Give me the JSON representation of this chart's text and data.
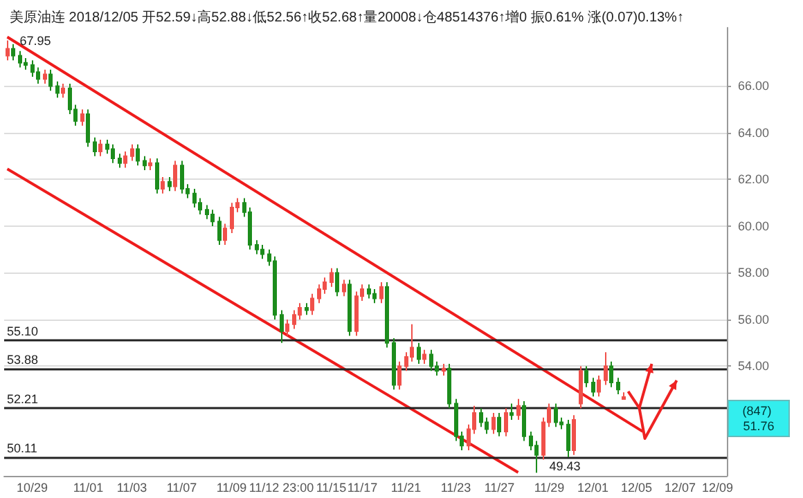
{
  "chart_data": {
    "type": "candlestick",
    "title": "美原油连 2018/12/05 开52.59↓高52.88↓低52.56↑收52.68↑量20008↓仓48514376↑增0 振0.61% 涨(0.07)0.13%↑",
    "categories": [
      null,
      null,
      null,
      null,
      "10/29",
      null,
      null,
      null,
      null,
      null,
      null,
      null,
      null,
      "11/01",
      null,
      null,
      null,
      null,
      null,
      null,
      "11/03",
      null,
      null,
      null,
      null,
      null,
      null,
      null,
      "11/07",
      null,
      null,
      null,
      null,
      null,
      null,
      null,
      "11/09",
      null,
      null,
      null,
      null,
      null,
      null,
      null,
      "11/12 23:00",
      null,
      null,
      null,
      null,
      null,
      null,
      null,
      "11/15",
      null,
      null,
      null,
      null,
      "11/17",
      null,
      null,
      null,
      null,
      null,
      null,
      "11/21",
      null,
      null,
      null,
      null,
      null,
      null,
      null,
      "11/23",
      null,
      null,
      null,
      null,
      null,
      null,
      "11/27",
      null,
      null,
      null,
      null,
      null,
      null,
      null,
      "11/29",
      null,
      null,
      null,
      null,
      null,
      null,
      "12/01",
      null,
      null,
      null,
      null,
      null,
      null,
      "12/05",
      null,
      null,
      null,
      null,
      null,
      null,
      "12/07",
      null,
      null,
      null,
      null,
      null,
      "12/09",
      null
    ],
    "ohlc": [
      [
        67.3,
        67.95,
        67.1,
        67.6
      ],
      [
        67.6,
        67.8,
        67.1,
        67.3
      ],
      [
        67.3,
        67.5,
        66.8,
        67.0
      ],
      [
        67.0,
        67.2,
        66.7,
        66.9
      ],
      [
        66.9,
        67.1,
        66.4,
        66.6
      ],
      [
        66.6,
        66.8,
        66.1,
        66.3
      ],
      [
        66.3,
        66.7,
        66.1,
        66.5
      ],
      [
        66.5,
        66.7,
        65.8,
        66.0
      ],
      [
        66.0,
        66.2,
        65.5,
        65.7
      ],
      [
        65.7,
        66.1,
        65.5,
        65.9
      ],
      [
        65.9,
        66.1,
        64.8,
        65.0
      ],
      [
        65.0,
        65.2,
        64.3,
        64.5
      ],
      [
        64.5,
        65.0,
        64.3,
        64.8
      ],
      [
        64.8,
        65.0,
        63.4,
        63.6
      ],
      [
        63.6,
        63.8,
        63.0,
        63.2
      ],
      [
        63.2,
        63.7,
        63.0,
        63.5
      ],
      [
        63.5,
        63.7,
        63.1,
        63.3
      ],
      [
        63.3,
        63.5,
        62.7,
        62.9
      ],
      [
        62.9,
        63.1,
        62.5,
        62.7
      ],
      [
        62.7,
        63.2,
        62.5,
        63.0
      ],
      [
        63.0,
        63.5,
        62.8,
        63.3
      ],
      [
        63.3,
        63.5,
        62.6,
        62.8
      ],
      [
        62.8,
        63.0,
        62.4,
        62.6
      ],
      [
        62.6,
        62.9,
        62.4,
        62.7
      ],
      [
        62.7,
        62.9,
        61.4,
        61.6
      ],
      [
        61.6,
        62.1,
        61.4,
        61.9
      ],
      [
        61.9,
        62.1,
        61.5,
        61.7
      ],
      [
        61.7,
        62.8,
        61.5,
        62.6
      ],
      [
        62.6,
        62.8,
        61.4,
        61.6
      ],
      [
        61.6,
        61.8,
        61.2,
        61.4
      ],
      [
        61.4,
        61.6,
        60.8,
        61.0
      ],
      [
        61.0,
        61.2,
        60.5,
        60.7
      ],
      [
        60.7,
        60.9,
        60.3,
        60.5
      ],
      [
        60.5,
        60.7,
        60.0,
        60.2
      ],
      [
        60.2,
        60.4,
        59.2,
        59.4
      ],
      [
        59.4,
        60.1,
        59.2,
        59.9
      ],
      [
        59.9,
        61.0,
        59.7,
        60.8
      ],
      [
        60.8,
        61.2,
        60.6,
        61.0
      ],
      [
        61.0,
        61.2,
        60.4,
        60.6
      ],
      [
        60.6,
        60.8,
        59.0,
        59.2
      ],
      [
        59.2,
        59.4,
        58.8,
        59.0
      ],
      [
        59.0,
        59.2,
        58.6,
        58.8
      ],
      [
        58.8,
        59.0,
        58.3,
        58.5
      ],
      [
        58.5,
        58.7,
        56.0,
        56.2
      ],
      [
        56.2,
        56.4,
        55.0,
        55.5
      ],
      [
        55.5,
        56.0,
        55.3,
        55.8
      ],
      [
        55.8,
        56.4,
        55.6,
        56.2
      ],
      [
        56.2,
        56.7,
        56.0,
        56.5
      ],
      [
        56.5,
        56.7,
        56.2,
        56.4
      ],
      [
        56.4,
        57.1,
        56.2,
        56.9
      ],
      [
        56.9,
        57.5,
        56.7,
        57.3
      ],
      [
        57.3,
        57.8,
        57.1,
        57.6
      ],
      [
        57.6,
        58.2,
        57.4,
        58.0
      ],
      [
        58.0,
        58.2,
        57.0,
        57.2
      ],
      [
        57.2,
        57.7,
        57.0,
        57.5
      ],
      [
        57.5,
        57.7,
        55.3,
        55.5
      ],
      [
        55.5,
        57.2,
        55.3,
        57.0
      ],
      [
        57.0,
        57.5,
        56.8,
        57.3
      ],
      [
        57.3,
        57.5,
        56.9,
        57.1
      ],
      [
        57.1,
        57.3,
        56.7,
        56.9
      ],
      [
        56.9,
        57.6,
        56.7,
        57.4
      ],
      [
        57.4,
        57.6,
        54.8,
        55.0
      ],
      [
        55.0,
        55.2,
        53.0,
        53.2
      ],
      [
        53.2,
        54.2,
        53.0,
        54.0
      ],
      [
        54.0,
        54.6,
        53.8,
        54.4
      ],
      [
        54.4,
        55.8,
        54.2,
        54.8
      ],
      [
        54.8,
        55.0,
        54.1,
        54.3
      ],
      [
        54.3,
        54.7,
        54.1,
        54.5
      ],
      [
        54.5,
        54.7,
        53.8,
        54.0
      ],
      [
        54.0,
        54.2,
        53.6,
        53.8
      ],
      [
        53.8,
        54.1,
        53.6,
        53.9
      ],
      [
        53.9,
        54.1,
        52.2,
        52.4
      ],
      [
        52.4,
        52.6,
        50.8,
        51.0
      ],
      [
        51.0,
        51.2,
        50.4,
        50.6
      ],
      [
        50.6,
        51.5,
        50.4,
        51.3
      ],
      [
        51.3,
        52.3,
        51.1,
        52.0
      ],
      [
        52.0,
        52.2,
        51.4,
        51.6
      ],
      [
        51.6,
        51.8,
        51.1,
        51.3
      ],
      [
        51.3,
        52.0,
        51.1,
        51.8
      ],
      [
        51.8,
        52.0,
        51.0,
        51.2
      ],
      [
        51.2,
        52.2,
        51.0,
        52.0
      ],
      [
        52.0,
        52.4,
        51.7,
        51.9
      ],
      [
        51.9,
        52.6,
        51.7,
        52.3
      ],
      [
        52.3,
        52.5,
        50.8,
        51.0
      ],
      [
        51.0,
        51.2,
        50.4,
        50.6
      ],
      [
        50.6,
        50.8,
        49.43,
        50.2
      ],
      [
        50.2,
        51.8,
        50.0,
        51.6
      ],
      [
        51.6,
        52.4,
        51.4,
        52.2
      ],
      [
        52.2,
        52.4,
        51.4,
        51.6
      ],
      [
        51.6,
        51.8,
        51.3,
        51.5
      ],
      [
        51.5,
        51.7,
        50.1,
        50.4
      ],
      [
        50.4,
        51.9,
        50.2,
        51.7
      ],
      [
        52.4,
        54.0,
        52.2,
        53.8
      ],
      [
        53.8,
        54.0,
        53.1,
        53.3
      ],
      [
        53.3,
        53.5,
        52.7,
        52.9
      ],
      [
        52.9,
        53.6,
        52.7,
        53.4
      ],
      [
        53.4,
        54.6,
        53.2,
        54.0
      ],
      [
        54.0,
        54.2,
        53.1,
        53.3
      ],
      [
        53.3,
        53.5,
        52.8,
        53.0
      ],
      [
        52.59,
        52.88,
        52.56,
        52.68
      ],
      null,
      null,
      null,
      null,
      null,
      null,
      null,
      null,
      null,
      null,
      null,
      null,
      null,
      null,
      null,
      null
    ],
    "colors": [
      "#f0504a",
      "#1c8c1c",
      "#1c8c1c",
      "#1c8c1c",
      "#1c8c1c",
      "#1c8c1c",
      "#f0504a",
      "#1c8c1c",
      "#1c8c1c",
      "#f0504a",
      "#1c8c1c",
      "#1c8c1c",
      "#f0504a",
      "#1c8c1c",
      "#1c8c1c",
      "#f0504a",
      "#1c8c1c",
      "#1c8c1c",
      "#1c8c1c",
      "#f0504a",
      "#f0504a",
      "#1c8c1c",
      "#1c8c1c",
      "#f0504a",
      "#1c8c1c",
      "#f0504a",
      "#1c8c1c",
      "#f0504a",
      "#1c8c1c",
      "#1c8c1c",
      "#1c8c1c",
      "#1c8c1c",
      "#1c8c1c",
      "#1c8c1c",
      "#1c8c1c",
      "#f0504a",
      "#f0504a",
      "#f0504a",
      "#1c8c1c",
      "#1c8c1c",
      "#1c8c1c",
      "#1c8c1c",
      "#1c8c1c",
      "#1c8c1c",
      "#1c8c1c",
      "#f0504a",
      "#f0504a",
      "#f0504a",
      "#1c8c1c",
      "#f0504a",
      "#f0504a",
      "#f0504a",
      "#f0504a",
      "#1c8c1c",
      "#f0504a",
      "#1c8c1c",
      "#f0504a",
      "#f0504a",
      "#1c8c1c",
      "#1c8c1c",
      "#f0504a",
      "#1c8c1c",
      "#1c8c1c",
      "#f0504a",
      "#f0504a",
      "#f0504a",
      "#1c8c1c",
      "#f0504a",
      "#1c8c1c",
      "#1c8c1c",
      "#f0504a",
      "#1c8c1c",
      "#1c8c1c",
      "#1c8c1c",
      "#f0504a",
      "#f0504a",
      "#1c8c1c",
      "#1c8c1c",
      "#f0504a",
      "#1c8c1c",
      "#f0504a",
      "#1c8c1c",
      "#f0504a",
      "#1c8c1c",
      "#1c8c1c",
      "#1c8c1c",
      "#f0504a",
      "#f0504a",
      "#1c8c1c",
      "#1c8c1c",
      "#1c8c1c",
      "#f0504a",
      "#f0504a",
      "#1c8c1c",
      "#1c8c1c",
      "#f0504a",
      "#f0504a",
      "#1c8c1c",
      "#1c8c1c",
      "#f0504a",
      null,
      null,
      null,
      null,
      null,
      null,
      null,
      null,
      null,
      null,
      null,
      null,
      null,
      null,
      null,
      null
    ],
    "series": [
      {
        "type": "line",
        "color": "#ee1c1c",
        "values": [
          68.1,
          null,
          null,
          null,
          null,
          null,
          null,
          null,
          null,
          null,
          null,
          null,
          null,
          null,
          null,
          null,
          null,
          null,
          null,
          null,
          null,
          null,
          null,
          null,
          null,
          null,
          null,
          null,
          null,
          null,
          null,
          null,
          null,
          null,
          null,
          null,
          null,
          null,
          null,
          null,
          null,
          null,
          null,
          null,
          null,
          null,
          null,
          null,
          null,
          null,
          null,
          null,
          null,
          null,
          null,
          null,
          null,
          null,
          null,
          null,
          null,
          null,
          null,
          null,
          null,
          null,
          null,
          null,
          null,
          null,
          null,
          null,
          null,
          null,
          null,
          null,
          null,
          null,
          null,
          null,
          null,
          null,
          null,
          null,
          null,
          null,
          null,
          null,
          null,
          null,
          null,
          null,
          null,
          null,
          null,
          null,
          null,
          null,
          null,
          null,
          null,
          null,
          51.2,
          null,
          null,
          null,
          null,
          null,
          null,
          null,
          null,
          null,
          null,
          null,
          null,
          null
        ]
      },
      {
        "type": "line",
        "color": "#ee1c1c",
        "values": [
          62.45,
          null,
          null,
          null,
          null,
          null,
          null,
          null,
          null,
          null,
          null,
          null,
          null,
          null,
          null,
          null,
          null,
          null,
          null,
          null,
          null,
          null,
          null,
          null,
          null,
          null,
          null,
          null,
          null,
          null,
          null,
          null,
          null,
          null,
          null,
          null,
          null,
          null,
          null,
          null,
          null,
          null,
          null,
          null,
          null,
          null,
          null,
          null,
          null,
          null,
          null,
          null,
          null,
          null,
          null,
          null,
          null,
          null,
          null,
          null,
          null,
          null,
          null,
          null,
          null,
          null,
          null,
          null,
          null,
          null,
          null,
          null,
          null,
          null,
          null,
          null,
          null,
          null,
          null,
          null,
          null,
          null,
          49.45,
          null,
          null,
          null,
          null,
          null,
          null,
          null,
          null,
          null,
          null,
          null,
          null,
          null,
          null,
          null,
          null,
          null,
          null,
          null,
          null,
          null,
          null,
          null,
          null,
          null,
          null,
          null,
          null,
          null,
          null,
          null,
          null,
          null
        ]
      }
    ],
    "ylim": [
      49.3,
      68.5
    ],
    "yticks": [
      {
        "value": 54,
        "label": "54.00"
      },
      {
        "value": 56,
        "label": "56.00"
      },
      {
        "value": 58,
        "label": "58.00"
      },
      {
        "value": 60,
        "label": "60.00"
      },
      {
        "value": 62,
        "label": "62.00"
      },
      {
        "value": 64,
        "label": "64.00"
      },
      {
        "value": 66,
        "label": "66.00"
      }
    ],
    "grid": "y",
    "ref_lines": [
      {
        "axis": "y",
        "value": 55.1,
        "label": "55.10",
        "color": "#222222"
      },
      {
        "axis": "y",
        "value": 53.88,
        "label": "53.88",
        "color": "#222222"
      },
      {
        "axis": "y",
        "value": 52.21,
        "label": "52.21",
        "color": "#222222"
      },
      {
        "axis": "y",
        "value": 50.11,
        "label": "50.11",
        "color": "#222222"
      }
    ],
    "annotations": [
      "67.95",
      "49.43",
      {
        "text": "(847) 51.76",
        "y": 51.76
      }
    ]
  }
}
